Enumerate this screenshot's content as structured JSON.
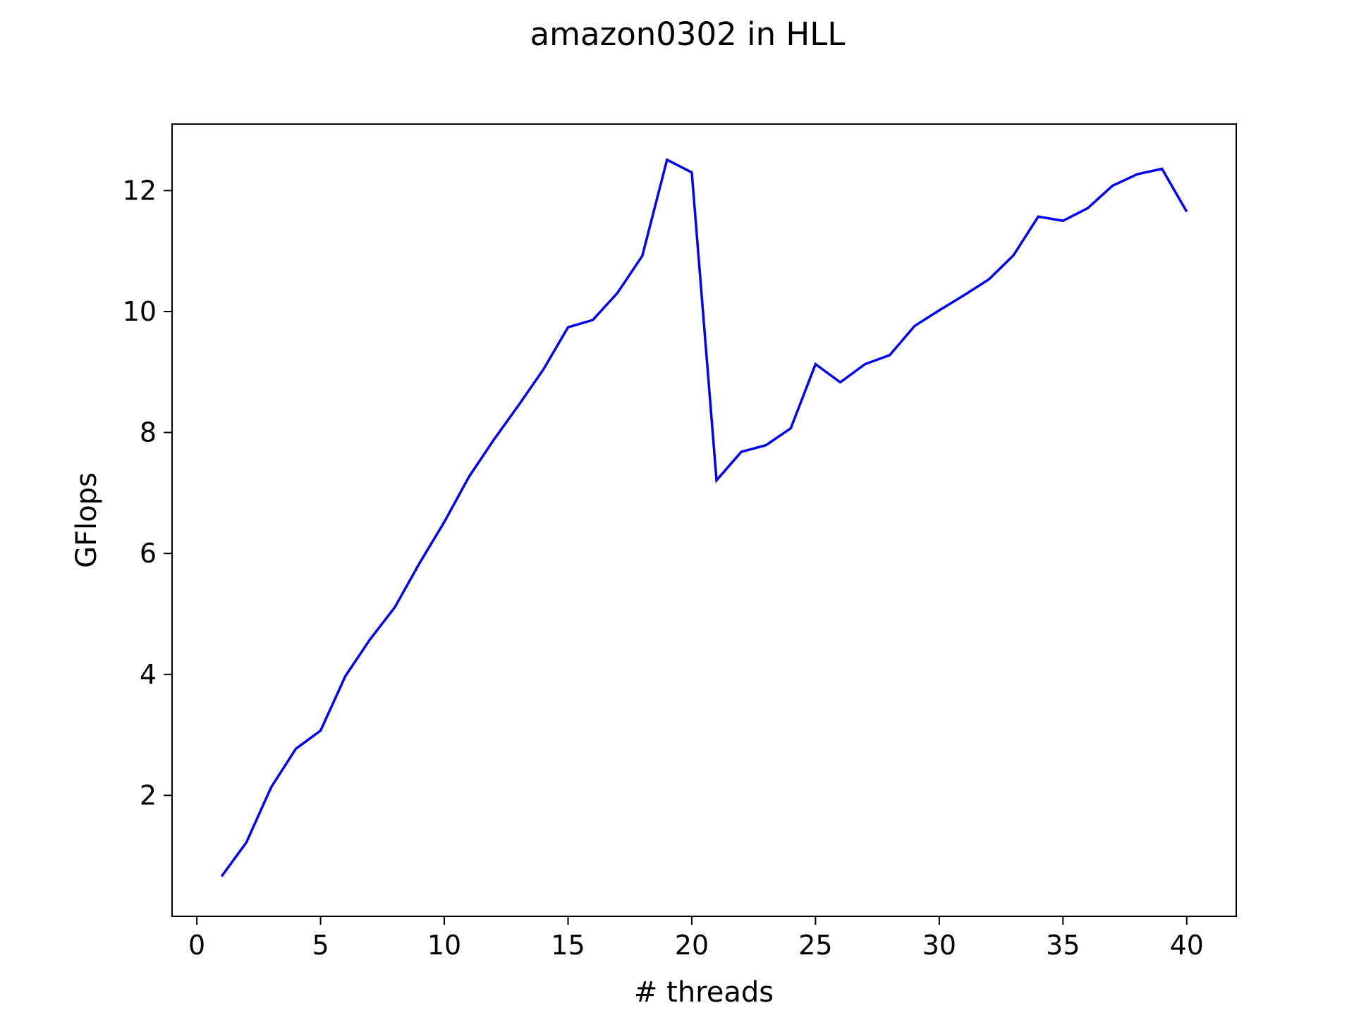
{
  "chart_data": {
    "type": "line",
    "title": "amazon0302 in HLL",
    "xlabel": "# threads",
    "ylabel": "GFlops",
    "xlim": [
      -1,
      42
    ],
    "ylim": [
      0.0,
      13.1
    ],
    "xticks": [
      0,
      5,
      10,
      15,
      20,
      25,
      30,
      35,
      40
    ],
    "yticks": [
      2,
      4,
      6,
      8,
      10,
      12
    ],
    "grid": false,
    "legend": "none",
    "series": [
      {
        "color": "#0000ff",
        "x": [
          1,
          2,
          3,
          4,
          5,
          6,
          7,
          8,
          9,
          10,
          11,
          12,
          13,
          14,
          15,
          16,
          17,
          18,
          19,
          20,
          21,
          22,
          23,
          24,
          25,
          26,
          27,
          28,
          29,
          30,
          31,
          32,
          33,
          34,
          35,
          36,
          37,
          38,
          39,
          40
        ],
        "y": [
          0.66,
          1.22,
          2.13,
          2.77,
          3.07,
          3.97,
          4.58,
          5.11,
          5.84,
          6.52,
          7.27,
          7.88,
          8.45,
          9.04,
          9.74,
          9.86,
          10.31,
          10.92,
          12.51,
          12.3,
          7.21,
          7.68,
          7.79,
          8.07,
          9.13,
          8.83,
          9.13,
          9.28,
          9.76,
          10.02,
          10.27,
          10.53,
          10.93,
          11.57,
          11.5,
          11.71,
          12.08,
          12.27,
          12.36,
          11.65
        ]
      }
    ]
  }
}
